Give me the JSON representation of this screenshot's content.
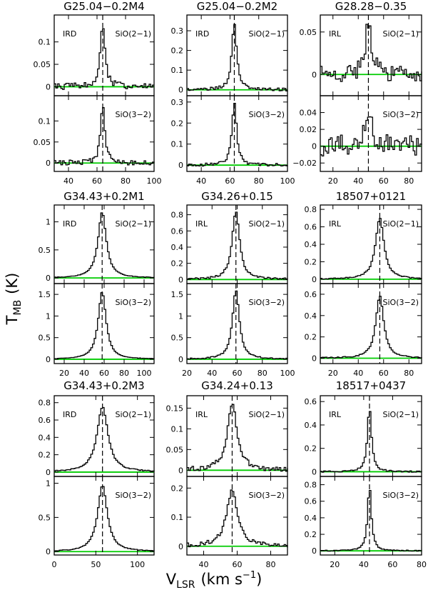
{
  "figure": {
    "ylabel_main": "T",
    "ylabel_sub": "MB",
    "ylabel_unit": "(K)",
    "xlabel_main": "V",
    "xlabel_sub": "LSR",
    "xlabel_unit_pre": "(km s",
    "xlabel_unit_exp": "−1",
    "xlabel_unit_post": ")",
    "colors": {
      "baseline": "#00cc00",
      "spectrum": "#000000",
      "systemic": "#000000"
    }
  },
  "chart_data": [
    {
      "type": "line",
      "step": true,
      "title": "G25.04−0.2M4",
      "class": "IRD",
      "xlim": [
        30,
        100
      ],
      "xticks": [
        40,
        60,
        80,
        100
      ],
      "panels": [
        {
          "line": "SiO(2−1)",
          "ylim": [
            -0.02,
            0.16
          ],
          "yticks": [
            0,
            0.05,
            0.1
          ],
          "ytick_labels": [
            "0",
            "0.05",
            "0.1"
          ],
          "peak": 0.135,
          "vlsr": 64,
          "width": 2.0,
          "noise": 0.007
        },
        {
          "line": "SiO(3−2)",
          "ylim": [
            -0.02,
            0.16
          ],
          "yticks": [
            0,
            0.05,
            0.1
          ],
          "ytick_labels": [
            "0",
            "0.05",
            "0.1"
          ],
          "peak": 0.14,
          "vlsr": 64,
          "width": 1.8,
          "noise": 0.006
        }
      ]
    },
    {
      "type": "line",
      "step": true,
      "title": "G25.04−0.2M2",
      "class": "IRD",
      "xlim": [
        30,
        100
      ],
      "xticks": [
        40,
        60,
        80,
        100
      ],
      "panels": [
        {
          "line": "SiO(2−1)",
          "ylim": [
            -0.03,
            0.38
          ],
          "yticks": [
            0,
            0.1,
            0.2,
            0.3
          ],
          "ytick_labels": [
            "0",
            "0.1",
            "0.2",
            "0.3"
          ],
          "peak": 0.34,
          "vlsr": 63,
          "width": 2.0,
          "noise": 0.008
        },
        {
          "line": "SiO(3−2)",
          "ylim": [
            -0.03,
            0.33
          ],
          "yticks": [
            0,
            0.1,
            0.2,
            0.3
          ],
          "ytick_labels": [
            "0",
            "0.1",
            "0.2",
            "0.3"
          ],
          "peak": 0.3,
          "vlsr": 63,
          "width": 1.9,
          "noise": 0.007
        }
      ]
    },
    {
      "type": "line",
      "step": true,
      "title": "G28.28−0.35",
      "class": "IRL",
      "xlim": [
        10,
        90
      ],
      "xticks": [
        20,
        40,
        60,
        80
      ],
      "panels": [
        {
          "line": "SiO(2−1)",
          "ylim": [
            -0.025,
            0.07
          ],
          "yticks": [
            0,
            0.05
          ],
          "ytick_labels": [
            "0",
            "0.05"
          ],
          "peak": 0.06,
          "vlsr": 48,
          "width": 3.0,
          "noise": 0.01
        },
        {
          "line": "SiO(3−2)",
          "ylim": [
            -0.03,
            0.06
          ],
          "yticks": [
            -0.02,
            0,
            0.02,
            0.04
          ],
          "ytick_labels": [
            "−0.02",
            "0",
            "0.02",
            "0.04"
          ],
          "peak": 0.045,
          "vlsr": 48,
          "width": 3.0,
          "noise": 0.013
        }
      ]
    },
    {
      "type": "line",
      "step": true,
      "title": "G34.43+0.2M1",
      "class": "IRD",
      "xlim": [
        10,
        110
      ],
      "xticks": [
        20,
        40,
        60,
        80,
        100
      ],
      "panels": [
        {
          "line": "SiO(2−1)",
          "ylim": [
            -0.1,
            1.3
          ],
          "yticks": [
            0,
            0.5,
            1
          ],
          "ytick_labels": [
            "0",
            "0.5",
            "1"
          ],
          "peak": 1.17,
          "vlsr": 58,
          "width": 5.0,
          "noise": 0.005
        },
        {
          "line": "SiO(3−2)",
          "ylim": [
            -0.1,
            1.75
          ],
          "yticks": [
            0,
            0.5,
            1,
            1.5
          ],
          "ytick_labels": [
            "0",
            "0.5",
            "1",
            "1.5"
          ],
          "peak": 1.55,
          "vlsr": 58,
          "width": 4.8,
          "noise": 0.005
        }
      ]
    },
    {
      "type": "line",
      "step": true,
      "title": "G34.26+0.15",
      "class": "IRL",
      "xlim": [
        20,
        100
      ],
      "xticks": [
        20,
        40,
        60,
        80,
        100
      ],
      "panels": [
        {
          "line": "SiO(2−1)",
          "ylim": [
            -0.05,
            0.92
          ],
          "yticks": [
            0,
            0.2,
            0.4,
            0.6,
            0.8
          ],
          "ytick_labels": [
            "0",
            "0.2",
            "0.4",
            "0.6",
            "0.8"
          ],
          "peak": 0.85,
          "vlsr": 59,
          "width": 3.5,
          "noise": 0.012
        },
        {
          "line": "SiO(3−2)",
          "ylim": [
            -0.1,
            1.75
          ],
          "yticks": [
            0,
            0.5,
            1,
            1.5
          ],
          "ytick_labels": [
            "0",
            "0.5",
            "1",
            "1.5"
          ],
          "peak": 1.6,
          "vlsr": 59,
          "width": 3.3,
          "noise": 0.015
        }
      ]
    },
    {
      "type": "line",
      "step": true,
      "title": "18507+0121",
      "class": "IRL",
      "xlim": [
        10,
        90
      ],
      "xticks": [
        20,
        40,
        60,
        80
      ],
      "panels": [
        {
          "line": "SiO(2−1)",
          "ylim": [
            -0.05,
            0.85
          ],
          "yticks": [
            0,
            0.2,
            0.4,
            0.6,
            0.8
          ],
          "ytick_labels": [
            "0",
            "0.2",
            "0.4",
            "0.6",
            "0.8"
          ],
          "peak": 0.7,
          "vlsr": 57,
          "width": 4.0,
          "noise": 0.006
        },
        {
          "line": "SiO(3−2)",
          "ylim": [
            -0.05,
            0.7
          ],
          "yticks": [
            0,
            0.2,
            0.4,
            0.6
          ],
          "ytick_labels": [
            "0",
            "0.2",
            "0.4",
            "0.6"
          ],
          "peak": 0.58,
          "vlsr": 57,
          "width": 3.8,
          "noise": 0.006
        }
      ]
    },
    {
      "type": "line",
      "step": true,
      "title": "G34.43+0.2M3",
      "class": "IRD",
      "xlim": [
        0,
        120
      ],
      "xticks": [
        0,
        50,
        100
      ],
      "panels": [
        {
          "line": "SiO(2−1)",
          "ylim": [
            -0.05,
            0.88
          ],
          "yticks": [
            0,
            0.2,
            0.4,
            0.6,
            0.8
          ],
          "ytick_labels": [
            "0",
            "0.2",
            "0.4",
            "0.6",
            "0.8"
          ],
          "peak": 0.75,
          "vlsr": 58,
          "width": 8.0,
          "noise": 0.006
        },
        {
          "line": "SiO(3−2)",
          "ylim": [
            -0.05,
            1.1
          ],
          "yticks": [
            0,
            0.5,
            1
          ],
          "ytick_labels": [
            "0",
            "0.5",
            "1"
          ],
          "peak": 0.97,
          "vlsr": 58,
          "width": 7.0,
          "noise": 0.006
        }
      ]
    },
    {
      "type": "line",
      "step": true,
      "title": "G34.24+0.13",
      "class": "IRL",
      "xlim": [
        30,
        90
      ],
      "xticks": [
        40,
        60,
        80
      ],
      "panels": [
        {
          "line": "SiO(2−1)",
          "ylim": [
            -0.015,
            0.18
          ],
          "yticks": [
            0,
            0.05,
            0.1,
            0.15
          ],
          "ytick_labels": [
            "0",
            "0.05",
            "0.1",
            "0.15"
          ],
          "peak": 0.16,
          "vlsr": 57,
          "width": 3.5,
          "noise": 0.006
        },
        {
          "line": "SiO(3−2)",
          "ylim": [
            -0.03,
            0.24
          ],
          "yticks": [
            0,
            0.1,
            0.2
          ],
          "ytick_labels": [
            "0",
            "0.1",
            "0.2"
          ],
          "peak": 0.19,
          "vlsr": 57,
          "width": 4.0,
          "noise": 0.007
        }
      ]
    },
    {
      "type": "line",
      "step": true,
      "title": "18517+0437",
      "class": "IRL",
      "xlim": [
        10,
        80
      ],
      "xticks": [
        20,
        40,
        60,
        80
      ],
      "panels": [
        {
          "line": "SiO(2−1)",
          "ylim": [
            -0.04,
            0.65
          ],
          "yticks": [
            0,
            0.2,
            0.4,
            0.6
          ],
          "ytick_labels": [
            "0",
            "0.2",
            "0.4",
            "0.6"
          ],
          "peak": 0.55,
          "vlsr": 44,
          "width": 1.7,
          "noise": 0.006
        },
        {
          "line": "SiO(3−2)",
          "ylim": [
            -0.05,
            0.9
          ],
          "yticks": [
            0,
            0.2,
            0.4,
            0.6,
            0.8
          ],
          "ytick_labels": [
            "0",
            "0.2",
            "0.4",
            "0.6",
            "0.8"
          ],
          "peak": 0.78,
          "vlsr": 44,
          "width": 1.6,
          "noise": 0.006
        }
      ]
    }
  ]
}
